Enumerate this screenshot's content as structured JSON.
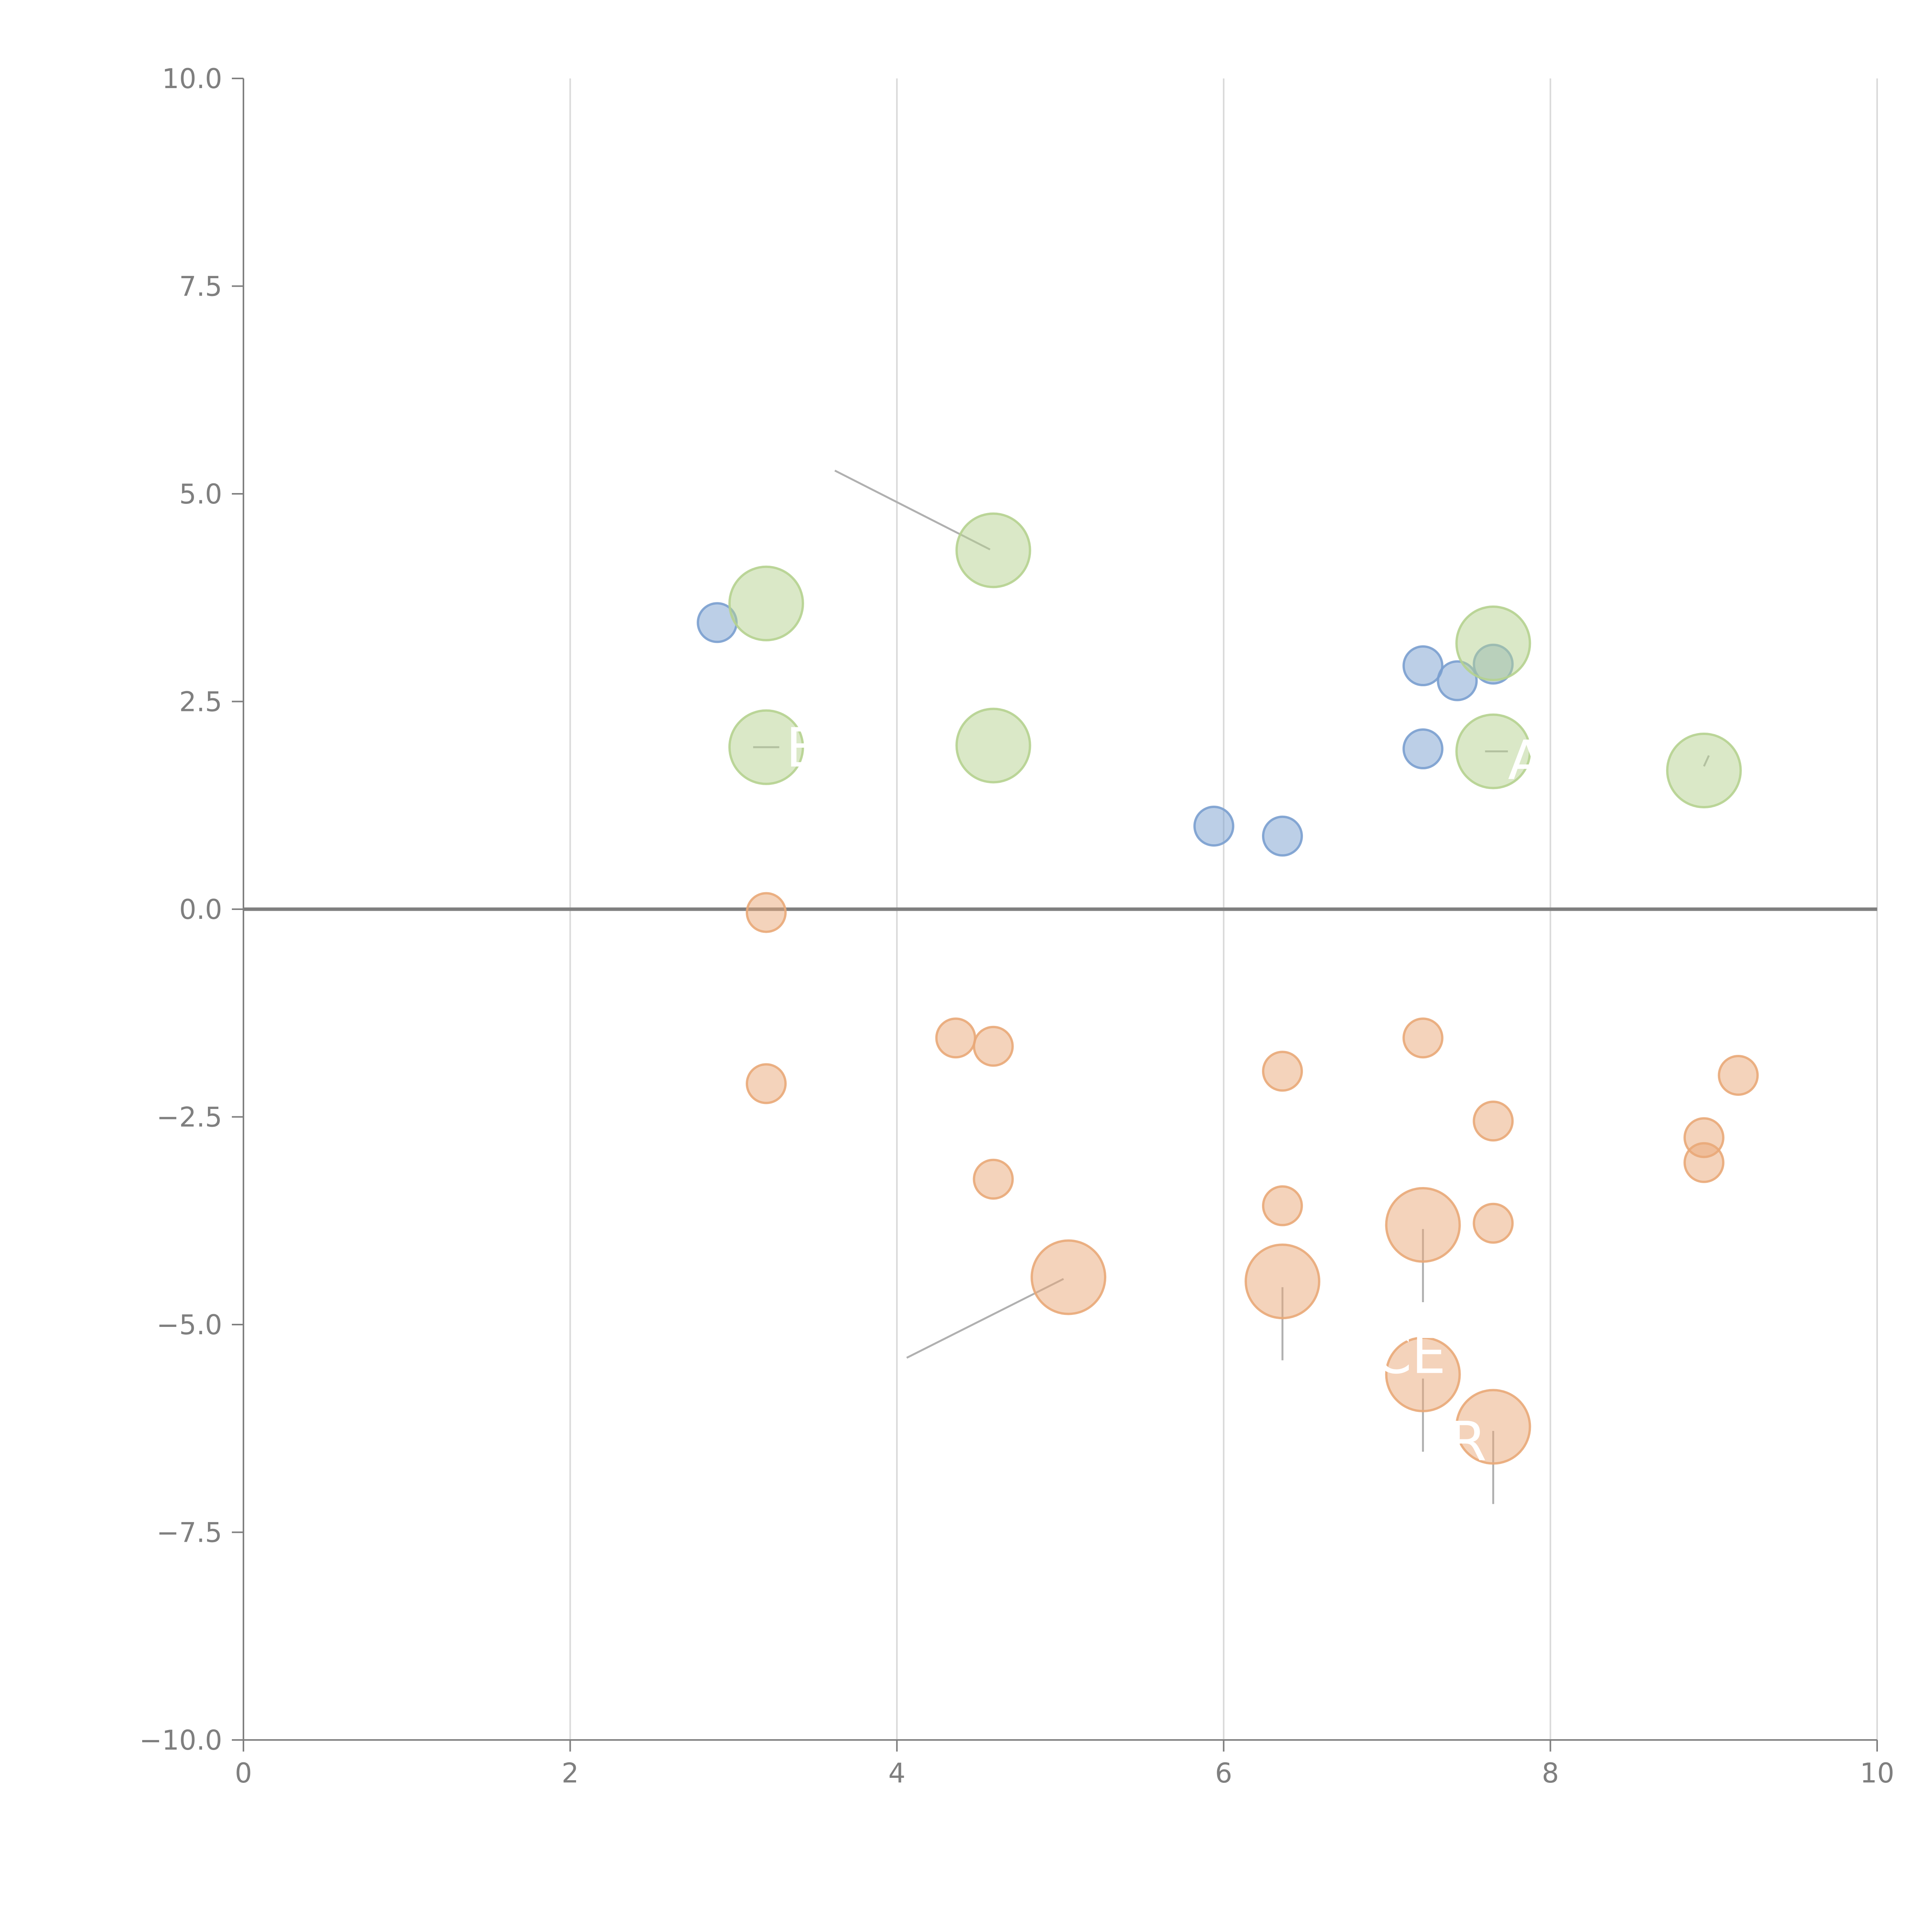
{
  "chart_data": {
    "type": "scatter",
    "title": "",
    "xlabel": "",
    "ylabel": "",
    "xlim": [
      0,
      10
    ],
    "ylim": [
      -10,
      10
    ],
    "x_ticks": [
      0,
      2,
      4,
      6,
      8,
      10
    ],
    "y_ticks": [
      10,
      7.5,
      5,
      2.5,
      0,
      -2.5,
      -5,
      -7.5,
      -10
    ],
    "x_tick_labels": [
      "0",
      "2",
      "4",
      "6",
      "8",
      "10"
    ],
    "y_tick_labels": [
      "10.0",
      "7.5",
      "5.0",
      "2.5",
      "0.0",
      "−2.5",
      "−5.0",
      "−7.5",
      "−10.0"
    ],
    "grid": "vertical",
    "zero_line": true,
    "series": [
      {
        "name": "blue",
        "color": "#7a9fcf",
        "points": [
          {
            "x": 2.9,
            "y": 3.45,
            "size": 1
          },
          {
            "x": 7.22,
            "y": 2.93,
            "size": 1
          },
          {
            "x": 7.43,
            "y": 2.75,
            "size": 1
          },
          {
            "x": 7.65,
            "y": 2.95,
            "size": 1
          },
          {
            "x": 7.22,
            "y": 1.93,
            "size": 1
          },
          {
            "x": 5.94,
            "y": 1.0,
            "size": 1
          },
          {
            "x": 6.36,
            "y": 0.88,
            "size": 1
          }
        ]
      },
      {
        "name": "green",
        "color": "#b5d18f",
        "points": [
          {
            "x": 3.2,
            "y": 3.68,
            "size": 2
          },
          {
            "x": 4.59,
            "y": 4.32,
            "size": 2
          },
          {
            "x": 3.2,
            "y": 1.95,
            "size": 2
          },
          {
            "x": 4.59,
            "y": 1.97,
            "size": 2
          },
          {
            "x": 7.65,
            "y": 3.2,
            "size": 2
          },
          {
            "x": 7.65,
            "y": 1.9,
            "size": 2
          },
          {
            "x": 8.94,
            "y": 1.67,
            "size": 2
          }
        ]
      },
      {
        "name": "orange",
        "color": "#e9a878",
        "points": [
          {
            "x": 3.2,
            "y": -0.04,
            "size": 1
          },
          {
            "x": 3.2,
            "y": -2.1,
            "size": 1
          },
          {
            "x": 4.36,
            "y": -1.55,
            "size": 1
          },
          {
            "x": 4.59,
            "y": -1.65,
            "size": 1
          },
          {
            "x": 4.59,
            "y": -3.25,
            "size": 1
          },
          {
            "x": 6.36,
            "y": -1.95,
            "size": 1
          },
          {
            "x": 6.36,
            "y": -3.57,
            "size": 1
          },
          {
            "x": 7.22,
            "y": -1.55,
            "size": 1
          },
          {
            "x": 7.65,
            "y": -2.55,
            "size": 1
          },
          {
            "x": 7.65,
            "y": -3.78,
            "size": 1
          },
          {
            "x": 8.94,
            "y": -2.75,
            "size": 1
          },
          {
            "x": 8.94,
            "y": -3.05,
            "size": 1
          },
          {
            "x": 9.15,
            "y": -2.0,
            "size": 1
          },
          {
            "x": 5.05,
            "y": -4.43,
            "size": 2
          },
          {
            "x": 6.36,
            "y": -4.48,
            "size": 2
          },
          {
            "x": 7.22,
            "y": -3.8,
            "size": 2
          },
          {
            "x": 7.22,
            "y": -5.6,
            "size": 2
          },
          {
            "x": 7.65,
            "y": -6.23,
            "size": 2
          }
        ]
      }
    ],
    "annotations": [
      {
        "text": "B",
        "x": 3.32,
        "y": 1.95
      },
      {
        "text": "A",
        "x": 7.74,
        "y": 1.8
      },
      {
        "text": "CE",
        "x": 6.92,
        "y": -5.35
      },
      {
        "text": "R",
        "x": 7.38,
        "y": -6.4
      }
    ],
    "leader_lines": [
      {
        "x1": 3.62,
        "y1": 5.28,
        "x2": 4.57,
        "y2": 4.33
      },
      {
        "x1": 4.06,
        "y1": -5.4,
        "x2": 5.02,
        "y2": -4.45
      },
      {
        "x1": 6.36,
        "y1": -4.55,
        "x2": 6.36,
        "y2": -5.43
      },
      {
        "x1": 7.22,
        "y1": -3.85,
        "x2": 7.22,
        "y2": -4.73
      },
      {
        "x1": 7.22,
        "y1": -5.65,
        "x2": 7.22,
        "y2": -6.53
      },
      {
        "x1": 7.65,
        "y1": -6.28,
        "x2": 7.65,
        "y2": -7.16
      },
      {
        "x1": 3.28,
        "y1": 1.95,
        "x2": 3.12,
        "y2": 1.95
      },
      {
        "x1": 7.74,
        "y1": 1.9,
        "x2": 7.6,
        "y2": 1.9
      },
      {
        "x1": 8.97,
        "y1": 1.85,
        "x2": 8.94,
        "y2": 1.72
      }
    ]
  }
}
